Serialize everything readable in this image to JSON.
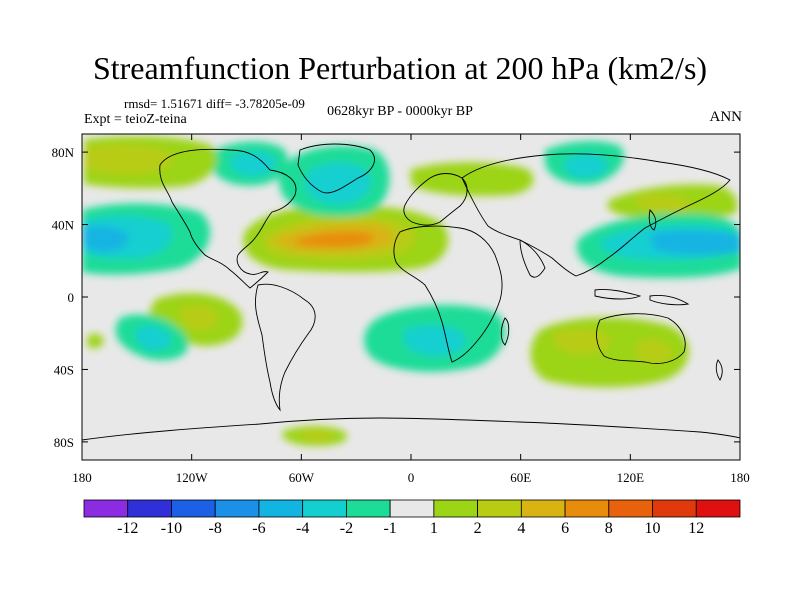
{
  "title": "Streamfunction Perturbation at 200 hPa (km2/s)",
  "stats": "rmsd= 1.51671 diff= -3.78205e-09",
  "experiment": "Expt = teioZ-teina",
  "period": "0628kyr BP - 0000kyr BP",
  "season": "ANN",
  "map": {
    "projection": "cylindrical equidistant",
    "lon_range": [
      -180,
      180
    ],
    "lat_range": [
      -90,
      90
    ],
    "lon_ticks": [
      "180",
      "120W",
      "60W",
      "0",
      "60E",
      "120E",
      "180"
    ],
    "lat_ticks": [
      "80N",
      "40N",
      "0",
      "40S",
      "80S"
    ],
    "background_color": "#e8e8e8",
    "coastline_color": "#000000",
    "anomalies": [
      {
        "name": "north-atlantic-positive",
        "lon": -35,
        "lat": 33,
        "peak": 8
      },
      {
        "name": "north-atlantic-negative",
        "lon": -45,
        "lat": 62,
        "peak": -4
      },
      {
        "name": "north-pacific-negative",
        "lon": 170,
        "lat": 32,
        "peak": -5
      },
      {
        "name": "southern-indian-negative",
        "lon": 15,
        "lat": -25,
        "peak": -3
      },
      {
        "name": "australia-positive",
        "lon": 110,
        "lat": -30,
        "peak": 4
      },
      {
        "name": "south-pacific-positive",
        "lon": -118,
        "lat": -12,
        "peak": 4
      },
      {
        "name": "south-pacific-negative",
        "lon": -140,
        "lat": -32,
        "peak": -3
      }
    ]
  },
  "colorbar": {
    "labels": [
      "-12",
      "-10",
      "-8",
      "-6",
      "-4",
      "-2",
      "-1",
      "1",
      "2",
      "4",
      "6",
      "8",
      "10",
      "12"
    ],
    "colors": [
      "#8b2be2",
      "#3030d8",
      "#1c60e6",
      "#1a90e8",
      "#12b4e2",
      "#14cfd0",
      "#1cdc98",
      "#e8e8e8",
      "#9cd416",
      "#b8cc14",
      "#d8b412",
      "#e88c0c",
      "#e8620c",
      "#e03a0c",
      "#e01010"
    ]
  }
}
